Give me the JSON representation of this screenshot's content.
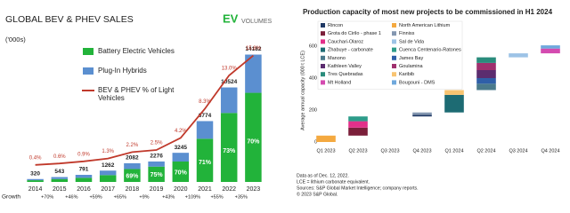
{
  "chart_data": [
    {
      "type": "bar",
      "stacked": true,
      "title": "GLOBAL BEV & PHEV SALES",
      "logo": [
        "EV",
        "VOLUMES"
      ],
      "unit_label": "('000s)",
      "categories": [
        "2014",
        "2015",
        "2016",
        "2017",
        "2018",
        "2019",
        "2020",
        "2021",
        "2022",
        "2023"
      ],
      "series": [
        {
          "name": "Battery Electric Vehicles",
          "color": "#22b33a",
          "values": [
            190,
            320,
            460,
            760,
            1437,
            1707,
            2272,
            4810,
            7683,
            9927
          ],
          "share_labels": [
            null,
            null,
            null,
            null,
            "69%",
            "75%",
            "70%",
            "71%",
            "73%",
            "70%"
          ]
        },
        {
          "name": "Plug-In Hybrids",
          "color": "#5b8fd0",
          "values": [
            130,
            223,
            331,
            502,
            645,
            569,
            973,
            1964,
            2841,
            4255
          ]
        },
        {
          "name": "BEV & PHEV % of Light Vehicles",
          "color": "#c0392b",
          "type": "line",
          "axis": "y2",
          "values": [
            0.4,
            0.6,
            0.9,
            1.3,
            2.2,
            2.5,
            4.2,
            8.3,
            13.0,
            15.8
          ],
          "value_labels": [
            "0.4%",
            "0.6%",
            "0.9%",
            "1.3%",
            "2.2%",
            "2.5%",
            "4.2%",
            "8.3%",
            "13.0%",
            "15.8%"
          ]
        }
      ],
      "totals": [
        320,
        543,
        791,
        1262,
        2082,
        2276,
        3245,
        6774,
        10524,
        14182
      ],
      "growth_label": "Growth",
      "growth": [
        "+70%",
        "+46%",
        "+59%",
        "+65%",
        "+9%",
        "+43%",
        "+109%",
        "+55%",
        "+35%"
      ],
      "ylim": [
        0,
        17000
      ],
      "y2lim": [
        -2,
        19.5
      ],
      "legend": "left"
    },
    {
      "type": "waterfall",
      "title": "Production capacity of most new projects to be commissioned in H1 2024",
      "y_label": "Average annual capacity (000 t LCE)",
      "categories": [
        "Q1 2023",
        "Q2 2023",
        "Q3 2023",
        "Q4 2023",
        "Q1 2024",
        "Q2 2024",
        "Q3 2024",
        "Q4 2024"
      ],
      "series": [
        {
          "name": "Rincon",
          "color": "#1f3864",
          "values": [
            null,
            null,
            null,
            10,
            null,
            null,
            null,
            null
          ]
        },
        {
          "name": "North American Lithium",
          "color": "#f4a940",
          "values": [
            40,
            null,
            null,
            null,
            null,
            null,
            null,
            null
          ]
        },
        {
          "name": "Grota do Cirilo - phase 1",
          "color": "#7b1f3a",
          "values": [
            null,
            50,
            null,
            null,
            null,
            null,
            null,
            null
          ]
        },
        {
          "name": "Finniss",
          "color": "#8497b0",
          "values": [
            null,
            null,
            null,
            15,
            null,
            null,
            null,
            null
          ]
        },
        {
          "name": "Cauchari-Olaroz",
          "color": "#e3308a",
          "values": [
            null,
            40,
            null,
            null,
            null,
            null,
            null,
            null
          ]
        },
        {
          "name": "Sal de Vida",
          "color": "#9dc3e6",
          "values": [
            null,
            null,
            null,
            null,
            null,
            null,
            25,
            null
          ]
        },
        {
          "name": "Zhabuye - carbonate",
          "color": "#1d6b73",
          "values": [
            null,
            null,
            null,
            null,
            110,
            null,
            null,
            null
          ]
        },
        {
          "name": "Cuenca Centenario-Ratones",
          "color": "#2e9c8a",
          "values": [
            null,
            30,
            null,
            null,
            null,
            null,
            null,
            null
          ]
        },
        {
          "name": "Manono",
          "color": "#4a7a8c",
          "values": [
            null,
            null,
            null,
            null,
            null,
            40,
            null,
            null
          ]
        },
        {
          "name": "James Bay",
          "color": "#2f5fa8",
          "values": [
            null,
            null,
            null,
            null,
            null,
            35,
            null,
            null
          ]
        },
        {
          "name": "Kathleen Valley",
          "color": "#5b2c6f",
          "values": [
            null,
            null,
            null,
            null,
            null,
            50,
            null,
            null
          ]
        },
        {
          "name": "Goulamina",
          "color": "#a0306e",
          "values": [
            null,
            null,
            null,
            null,
            null,
            45,
            null,
            null
          ]
        },
        {
          "name": "Tres Quebradas",
          "color": "#2a8c7c",
          "values": [
            null,
            null,
            null,
            null,
            null,
            35,
            null,
            null
          ]
        },
        {
          "name": "Karibib",
          "color": "#f8c471",
          "values": [
            null,
            null,
            null,
            null,
            30,
            null,
            null,
            null
          ]
        },
        {
          "name": "Mt Holland",
          "color": "#d44bb0",
          "values": [
            null,
            null,
            null,
            null,
            null,
            null,
            null,
            30
          ]
        },
        {
          "name": "Bougouni - DMS",
          "color": "#6fa8dc",
          "values": [
            null,
            null,
            null,
            null,
            null,
            null,
            null,
            20
          ]
        }
      ],
      "ylim": [
        0,
        650
      ],
      "yticks": [
        0,
        200,
        400,
        600
      ],
      "notes": [
        "Data as of Dec. 12, 2022.",
        "LCE = lithium carbonate equivalent.",
        "Sources: S&P Global Market Intelligence; company reports.",
        "© 2023 S&P Global."
      ]
    }
  ]
}
